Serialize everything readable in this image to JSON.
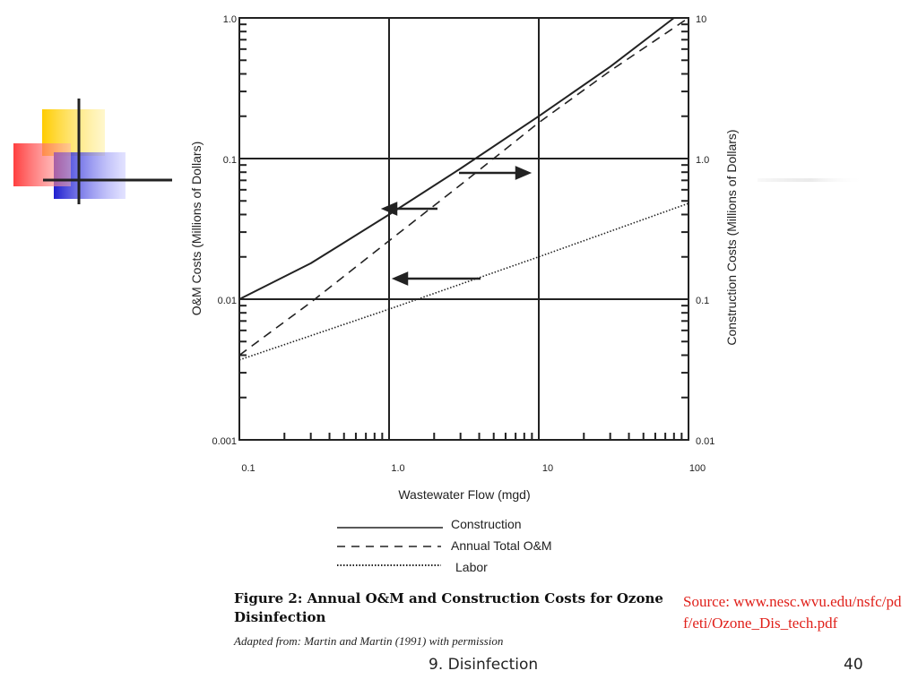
{
  "chart_data": {
    "type": "line",
    "x_scale": "log",
    "y_scale": "log",
    "xlim": [
      0.1,
      100
    ],
    "ylim_left": [
      0.001,
      1.0
    ],
    "ylim_right": [
      0.01,
      10
    ],
    "x_ticks": [
      "0.1",
      "1.0",
      "10",
      "100"
    ],
    "y_ticks_left": [
      "0.001",
      "0.01",
      "0.1",
      "1.0"
    ],
    "y_ticks_right": [
      "0.01",
      "0.1",
      "1.0",
      "10"
    ],
    "xlabel": "Wastewater Flow (mgd)",
    "ylabel_left": "O&M Costs (Millions of Dollars)",
    "ylabel_right": "Construction Costs (Millions of Dollars)",
    "grid": "major",
    "legend_placement": "bottom",
    "series": [
      {
        "name": "Construction",
        "axis": "right",
        "style": "solid",
        "x": [
          0.1,
          0.3,
          1.0,
          3.0,
          10,
          30,
          80
        ],
        "y": [
          0.1,
          0.18,
          0.4,
          0.85,
          2.0,
          4.5,
          10
        ]
      },
      {
        "name": "Annual Total O&M",
        "axis": "left",
        "style": "dashed",
        "x": [
          0.1,
          0.3,
          1.0,
          3.0,
          10,
          30,
          100
        ],
        "y": [
          0.004,
          0.0095,
          0.026,
          0.065,
          0.18,
          0.42,
          1.0
        ]
      },
      {
        "name": "Labor",
        "axis": "left",
        "style": "dotted",
        "x": [
          0.1,
          1.0,
          10,
          100
        ],
        "y": [
          0.0037,
          0.0085,
          0.02,
          0.048
        ]
      }
    ]
  },
  "caption": {
    "title": "Figure 2: Annual O&M and Construction Costs for Ozone Disinfection",
    "subtitle": "Adapted from: Martin and Martin (1991) with permission"
  },
  "source": "Source: www.nesc.wvu.edu/nsfc/pdf/eti/Ozone_Dis_tech.pdf",
  "footer": {
    "label": "9. Disinfection",
    "page": "40"
  },
  "colors": {
    "source_text": "#e0201a",
    "deco_yellow": "#ffcc00",
    "deco_red": "#ff3333",
    "deco_blue": "#2a2ad0"
  }
}
